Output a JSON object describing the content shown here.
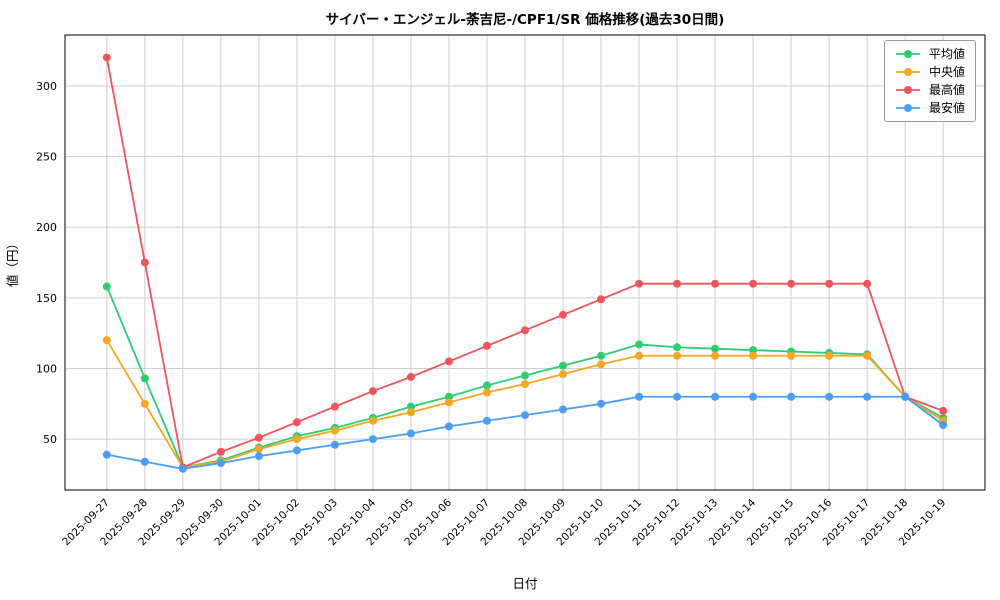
{
  "chart_data": {
    "type": "line",
    "title": "サイバー・エンジェル-荼吉尼-/CPF1/SR 価格推移(過去30日間)",
    "xlabel": "日付",
    "ylabel": "値（円）",
    "x": [
      "2025-09-27",
      "2025-09-28",
      "2025-09-29",
      "2025-09-30",
      "2025-10-01",
      "2025-10-02",
      "2025-10-03",
      "2025-10-04",
      "2025-10-05",
      "2025-10-06",
      "2025-10-07",
      "2025-10-08",
      "2025-10-09",
      "2025-10-10",
      "2025-10-11",
      "2025-10-12",
      "2025-10-13",
      "2025-10-14",
      "2025-10-15",
      "2025-10-16",
      "2025-10-17",
      "2025-10-18",
      "2025-10-19"
    ],
    "series": [
      {
        "name": "平均値",
        "color": "#2ecc71",
        "values": [
          158,
          93,
          30,
          35,
          44,
          52,
          58,
          65,
          73,
          80,
          88,
          95,
          102,
          109,
          117,
          115,
          114,
          113,
          112,
          111,
          110,
          80,
          65
        ]
      },
      {
        "name": "中央値",
        "color": "#f5a623",
        "values": [
          120,
          75,
          30,
          34,
          43,
          50,
          56,
          63,
          69,
          76,
          83,
          89,
          96,
          103,
          109,
          109,
          109,
          109,
          109,
          109,
          109,
          80,
          63
        ]
      },
      {
        "name": "最高値",
        "color": "#f2545b",
        "values": [
          320,
          175,
          30,
          41,
          51,
          62,
          73,
          84,
          94,
          105,
          116,
          127,
          138,
          149,
          160,
          160,
          160,
          160,
          160,
          160,
          160,
          80,
          70
        ]
      },
      {
        "name": "最安値",
        "color": "#4a9ff5",
        "values": [
          39,
          34,
          29,
          33,
          38,
          42,
          46,
          50,
          54,
          59,
          63,
          67,
          71,
          75,
          80,
          80,
          80,
          80,
          80,
          80,
          80,
          80,
          60
        ]
      }
    ],
    "yticks": [
      50,
      100,
      150,
      200,
      250,
      300
    ],
    "ylim": [
      14,
      336
    ],
    "grid": true,
    "legend_position": "upper right"
  }
}
